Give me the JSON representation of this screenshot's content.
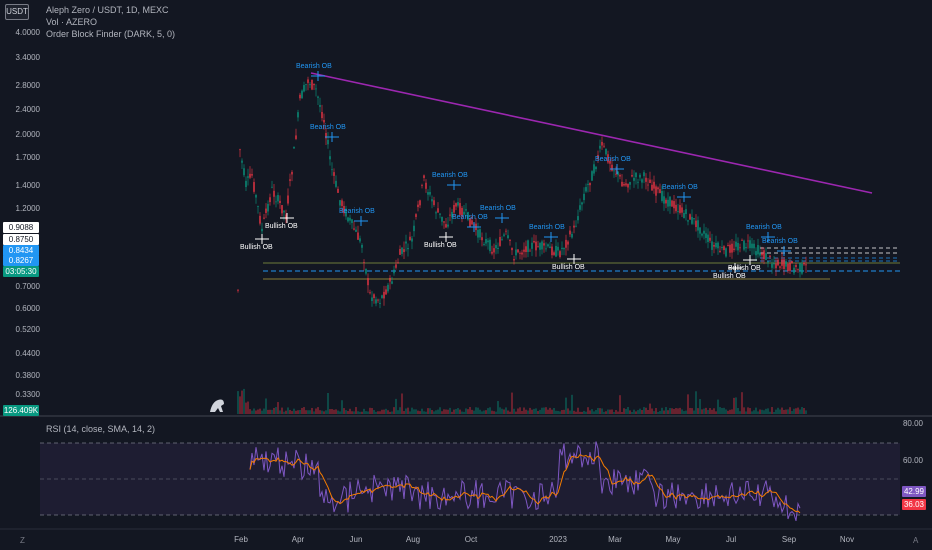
{
  "currency_button": "USDT",
  "legend": {
    "title": "Aleph Zero / USDT, 1D, MEXC",
    "volume": "Vol · AZERO",
    "indicator": "Order Block Finder (DARK, 5, 0)",
    "rsi": "RSI (14, close, SMA, 14, 2)"
  },
  "price_axis": [
    "4.0000",
    "3.4000",
    "2.8000",
    "2.4000",
    "2.0000",
    "1.7000",
    "1.4000",
    "1.2000",
    "0.7000",
    "0.6000",
    "0.5200",
    "0.4400",
    "0.3800",
    "0.3300"
  ],
  "price_tags": [
    {
      "label": "0.9088",
      "bg": "#ffffff",
      "fg": "#131722"
    },
    {
      "label": "0.8750",
      "bg": "#ffffff",
      "fg": "#131722"
    },
    {
      "label": "0.8434",
      "bg": "#2196f3",
      "fg": "#ffffff"
    },
    {
      "label": "0.8267",
      "bg": "#2196f3",
      "fg": "#ffffff"
    },
    {
      "label": "03:05:30",
      "bg": "#089981",
      "fg": "#ffffff"
    },
    {
      "label": "126.409K",
      "bg": "#089981",
      "fg": "#ffffff"
    }
  ],
  "rsi_axis": [
    "80.00",
    "60.00"
  ],
  "rsi_tags": [
    {
      "label": "42.99",
      "bg": "#7e57c2"
    },
    {
      "label": "36.03",
      "bg": "#f23645"
    }
  ],
  "time_axis": [
    "Feb",
    "Apr",
    "Jun",
    "Aug",
    "Oct",
    "2023",
    "Mar",
    "May",
    "Jul",
    "Sep",
    "Nov"
  ],
  "order_blocks": [
    {
      "label": "Bearish OB",
      "kind": "bearish"
    },
    {
      "label": "Bearish OB",
      "kind": "bearish"
    },
    {
      "label": "Bearish OB",
      "kind": "bearish"
    },
    {
      "label": "Bearish OB",
      "kind": "bearish"
    },
    {
      "label": "Bearish OB",
      "kind": "bearish"
    },
    {
      "label": "Bearish OB",
      "kind": "bearish"
    },
    {
      "label": "Bearish OB",
      "kind": "bearish"
    },
    {
      "label": "Bearish OB",
      "kind": "bearish"
    },
    {
      "label": "Bearish OB",
      "kind": "bearish"
    },
    {
      "label": "Bearish OB",
      "kind": "bearish"
    },
    {
      "label": "Bearish OB",
      "kind": "bearish"
    },
    {
      "label": "Bullish OB",
      "kind": "bullish"
    },
    {
      "label": "Bullish OB",
      "kind": "bullish"
    },
    {
      "label": "Bullish OB",
      "kind": "bullish"
    },
    {
      "label": "Bullish OB",
      "kind": "bullish"
    },
    {
      "label": "Bullish OB",
      "kind": "bullish"
    },
    {
      "label": "Bullish OB",
      "kind": "bullish"
    }
  ],
  "colors": {
    "background": "#131722",
    "bull": "#089981",
    "bear": "#f23645",
    "trendline": "#9c27b0",
    "rsi_line": "#7e57c2",
    "rsi_ma": "#f57c00",
    "ob_label": "#2196f3"
  },
  "corners": {
    "left": "Z",
    "right": "A"
  }
}
